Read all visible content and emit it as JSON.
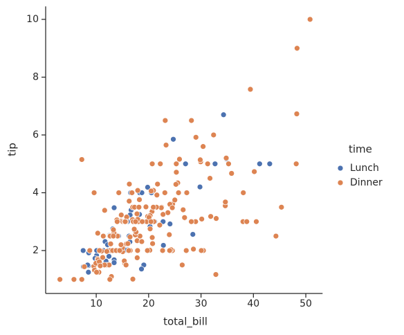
{
  "chart_data": {
    "type": "scatter",
    "xlabel": "total_bill",
    "ylabel": "tip",
    "legend_title": "time",
    "legend_position": "right",
    "xlim": [
      0.68,
      53.2
    ],
    "ylim": [
      0.55,
      10.45
    ],
    "xticks": [
      10,
      20,
      30,
      40,
      50
    ],
    "yticks": [
      2,
      4,
      6,
      8,
      10
    ],
    "series": [
      {
        "name": "Lunch",
        "color": "#4c72b0",
        "x": [
          27.2,
          22.76,
          17.29,
          19.44,
          16.66,
          10.07,
          32.68,
          15.98,
          34.83,
          13.03,
          18.28,
          24.71,
          21.16,
          10.65,
          12.43,
          24.08,
          11.69,
          13.42,
          14.26,
          15.95,
          12.48,
          29.8,
          8.52,
          14.52,
          11.38,
          22.82,
          19.08,
          20.27,
          11.17,
          12.26,
          18.26,
          8.51,
          10.33,
          14.15,
          16.0,
          13.16,
          17.47,
          34.3,
          41.19,
          27.05,
          16.43,
          8.35,
          18.64,
          11.87,
          9.78,
          7.51,
          19.81,
          28.44,
          15.48,
          16.58,
          7.56,
          10.34,
          43.11,
          13.0,
          13.51,
          18.71,
          12.74,
          13.0,
          16.4,
          20.53,
          16.47,
          12.16,
          13.42,
          8.58,
          15.98,
          13.42,
          16.27,
          10.09
        ],
        "values": [
          4.0,
          3.0,
          2.71,
          3.0,
          3.4,
          1.83,
          5.0,
          2.03,
          5.17,
          2.0,
          4.0,
          5.85,
          3.0,
          1.5,
          1.8,
          2.92,
          2.31,
          1.68,
          2.5,
          2.0,
          2.52,
          4.2,
          1.48,
          2.0,
          2.0,
          2.18,
          1.5,
          2.83,
          1.5,
          2.0,
          3.25,
          1.25,
          2.0,
          2.0,
          2.0,
          2.75,
          3.5,
          6.7,
          5.0,
          5.0,
          2.3,
          1.5,
          1.36,
          1.63,
          1.73,
          2.0,
          4.19,
          2.56,
          2.02,
          4.0,
          1.44,
          2.0,
          5.0,
          2.0,
          2.0,
          4.0,
          2.01,
          2.0,
          2.5,
          4.0,
          3.23,
          2.2,
          3.48,
          1.92,
          3.0,
          1.58,
          2.5,
          2.0
        ]
      },
      {
        "name": "Dinner",
        "color": "#dd8452",
        "x": [
          16.99,
          10.34,
          21.01,
          23.68,
          24.59,
          25.29,
          8.77,
          26.88,
          15.04,
          14.78,
          10.27,
          35.26,
          15.42,
          18.43,
          14.83,
          21.58,
          10.33,
          16.29,
          16.97,
          20.65,
          17.92,
          20.29,
          15.77,
          39.42,
          19.82,
          17.81,
          13.37,
          12.69,
          21.7,
          19.65,
          9.55,
          18.35,
          15.06,
          20.69,
          17.78,
          24.06,
          16.31,
          16.93,
          18.69,
          31.27,
          16.04,
          17.46,
          13.94,
          9.68,
          30.4,
          18.29,
          22.23,
          32.4,
          28.55,
          18.04,
          12.54,
          10.29,
          34.81,
          9.94,
          25.56,
          19.49,
          38.01,
          26.41,
          11.24,
          48.27,
          20.29,
          13.81,
          11.02,
          18.29,
          17.59,
          20.08,
          16.45,
          3.07,
          20.23,
          15.01,
          12.02,
          17.07,
          26.86,
          25.28,
          14.73,
          10.51,
          17.92,
          28.97,
          22.49,
          5.75,
          16.32,
          22.75,
          40.17,
          27.28,
          12.03,
          21.01,
          12.46,
          11.35,
          15.38,
          44.3,
          22.42,
          20.92,
          15.36,
          20.49,
          25.21,
          18.24,
          14.31,
          14.0,
          7.25,
          38.07,
          23.95,
          25.71,
          17.31,
          29.93,
          14.07,
          13.13,
          17.26,
          24.55,
          19.77,
          29.85,
          48.17,
          25.0,
          13.39,
          16.49,
          21.5,
          12.66,
          16.21,
          13.81,
          17.51,
          24.52,
          20.76,
          31.71,
          10.59,
          10.63,
          50.81,
          15.81,
          7.25,
          31.85,
          16.82,
          32.9,
          17.89,
          14.48,
          9.6,
          34.63,
          34.65,
          23.33,
          45.35,
          23.17,
          40.55,
          20.69,
          20.9,
          30.46,
          18.15,
          23.1,
          15.69,
          26.59,
          38.73,
          24.27,
          12.76,
          30.06,
          25.89,
          48.33,
          13.27,
          28.17,
          12.9,
          28.15,
          11.59,
          7.74,
          30.14,
          20.45,
          13.28,
          22.12,
          24.01,
          15.69,
          11.61,
          10.77,
          15.53,
          10.07,
          12.6,
          32.83,
          35.83,
          29.03,
          27.18,
          22.67,
          17.82,
          18.78
        ],
        "values": [
          1.01,
          1.66,
          3.5,
          3.31,
          3.61,
          4.71,
          2.0,
          3.12,
          1.96,
          3.23,
          1.71,
          5.0,
          1.57,
          3.0,
          3.02,
          3.92,
          1.67,
          3.71,
          3.5,
          3.35,
          4.08,
          2.75,
          2.23,
          7.58,
          3.18,
          2.34,
          2.0,
          2.0,
          4.3,
          3.0,
          1.45,
          2.5,
          3.0,
          2.45,
          3.27,
          3.6,
          2.0,
          3.07,
          2.31,
          5.0,
          2.24,
          2.54,
          3.06,
          1.32,
          5.6,
          3.0,
          5.0,
          6.0,
          2.05,
          3.0,
          2.5,
          2.6,
          5.2,
          1.56,
          4.34,
          3.51,
          3.0,
          1.5,
          1.76,
          6.73,
          3.21,
          2.0,
          1.98,
          3.76,
          2.64,
          3.15,
          2.47,
          1.0,
          2.01,
          2.09,
          1.97,
          3.0,
          3.14,
          5.0,
          2.2,
          1.25,
          3.08,
          3.0,
          3.5,
          1.0,
          4.3,
          3.25,
          4.73,
          4.0,
          1.5,
          3.0,
          1.5,
          2.5,
          3.0,
          2.5,
          3.48,
          4.08,
          1.64,
          4.06,
          4.29,
          3.76,
          4.0,
          3.0,
          1.0,
          4.0,
          2.55,
          4.0,
          3.5,
          5.07,
          2.5,
          2.0,
          2.74,
          2.0,
          2.0,
          5.14,
          5.0,
          3.75,
          2.61,
          2.0,
          3.5,
          2.5,
          2.0,
          2.0,
          3.0,
          3.48,
          2.24,
          4.5,
          1.61,
          2.0,
          10.0,
          3.16,
          5.15,
          3.18,
          4.0,
          3.11,
          2.0,
          2.0,
          4.0,
          3.55,
          3.68,
          5.65,
          3.5,
          6.5,
          3.0,
          5.0,
          3.5,
          2.0,
          3.5,
          4.0,
          1.5,
          3.41,
          3.0,
          2.03,
          2.23,
          2.0,
          5.16,
          9.0,
          2.5,
          6.5,
          1.1,
          3.0,
          1.5,
          1.44,
          3.09,
          3.0,
          2.72,
          2.88,
          2.0,
          3.0,
          3.39,
          1.47,
          3.0,
          1.25,
          1.0,
          1.17,
          4.67,
          5.92,
          2.0,
          2.0,
          1.75,
          3.0
        ]
      }
    ]
  }
}
